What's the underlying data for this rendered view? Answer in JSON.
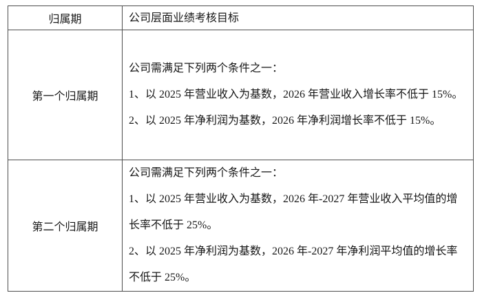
{
  "table": {
    "border_color": "#4d4d4d",
    "text_color": "#161616",
    "header": {
      "period_label": "归属期",
      "target_label": "公司层面业绩考核目标"
    },
    "rows": [
      {
        "period": "第一个归属期",
        "items": [
          "公司需满足下列两个条件之一：",
          "1、以 2025 年营业收入为基数，2026 年营业收入增长率不低于 15%。",
          "2、以 2025 年净利润为基数，2026 年净利润增长率不低于 15%。"
        ]
      },
      {
        "period": "第二个归属期",
        "items": [
          "公司需满足下列两个条件之一：",
          "1、以 2025 年营业收入为基数，2026 年-2027 年营业收入平均值的增长率不低于 25%。",
          "2、以 2025 年净利润为基数，2026 年-2027 年净利润平均值的增长率不低于 25%。"
        ]
      }
    ]
  }
}
